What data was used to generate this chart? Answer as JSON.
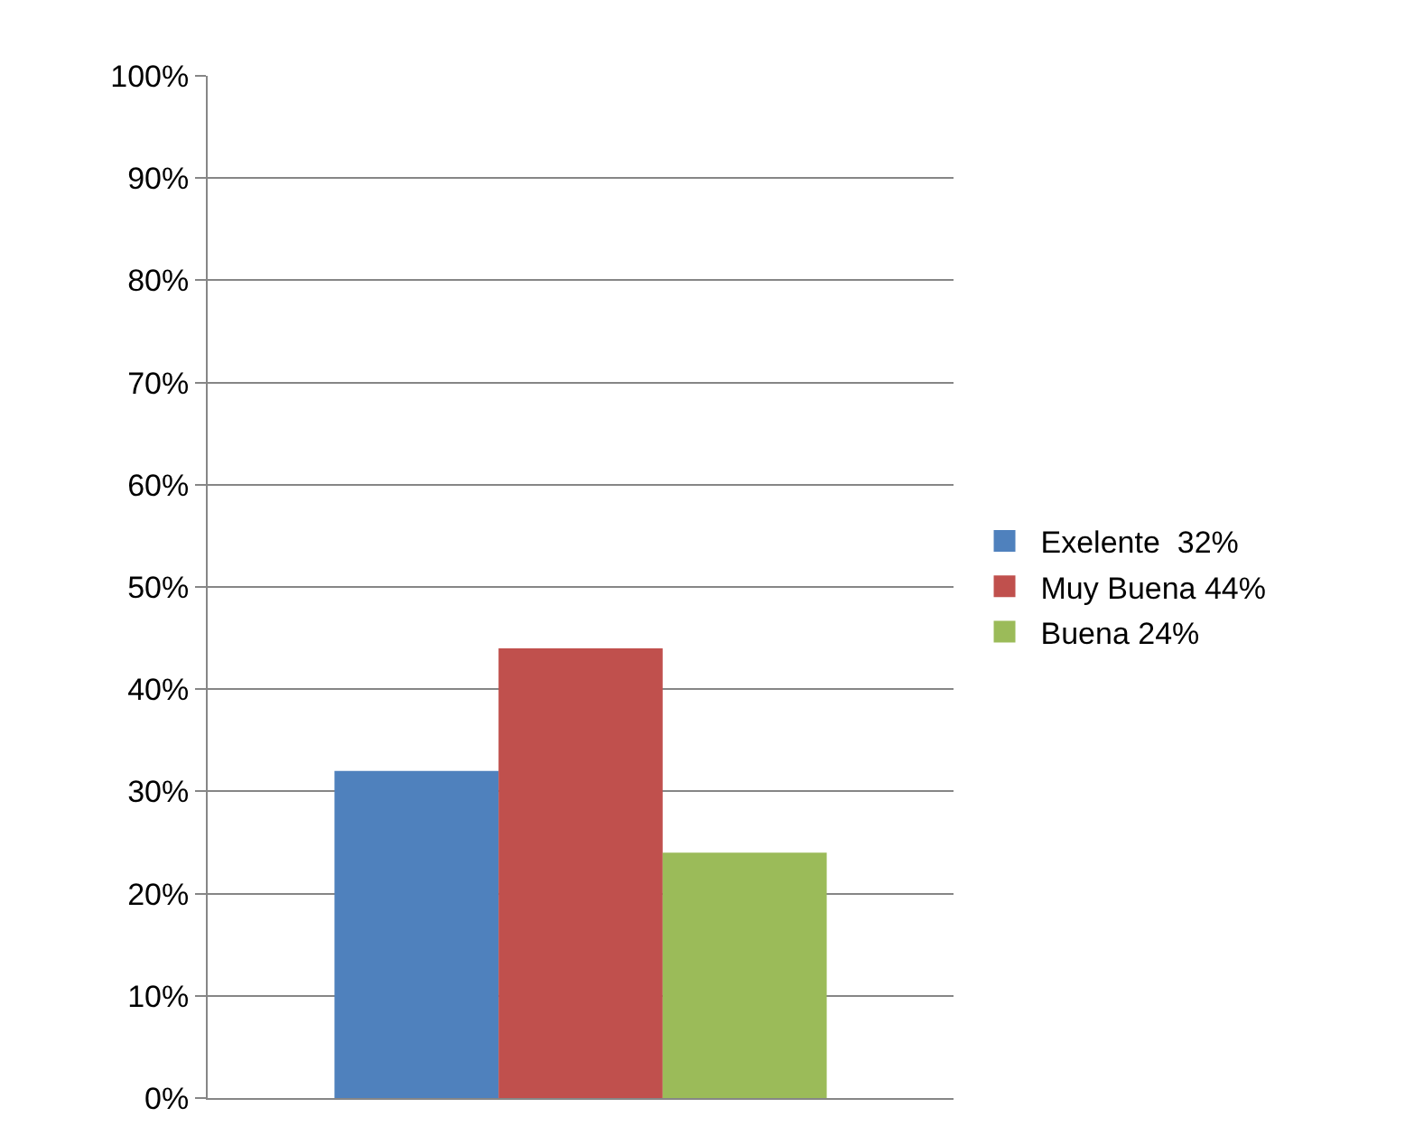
{
  "chart_data": {
    "type": "bar",
    "categories": [
      null
    ],
    "series": [
      {
        "name": "Exelente  32%",
        "color": "#4f81bd",
        "values": [
          32
        ]
      },
      {
        "name": "Muy Buena 44%",
        "color": "#c0504d",
        "values": [
          44
        ]
      },
      {
        "name": "Buena 24%",
        "color": "#9bbb59",
        "values": [
          24
        ]
      }
    ],
    "ylim": [
      0,
      100
    ],
    "yticks": [
      {
        "value": 0,
        "label": "0%"
      },
      {
        "value": 10,
        "label": "10%"
      },
      {
        "value": 20,
        "label": "20%"
      },
      {
        "value": 30,
        "label": "30%"
      },
      {
        "value": 40,
        "label": "40%"
      },
      {
        "value": 50,
        "label": "50%"
      },
      {
        "value": 60,
        "label": "60%"
      },
      {
        "value": 70,
        "label": "70%"
      },
      {
        "value": 80,
        "label": "80%"
      },
      {
        "value": 90,
        "label": "90%"
      },
      {
        "value": 100,
        "label": "100%"
      }
    ],
    "grid": "y",
    "legend": "right",
    "tick_labels": "y"
  }
}
